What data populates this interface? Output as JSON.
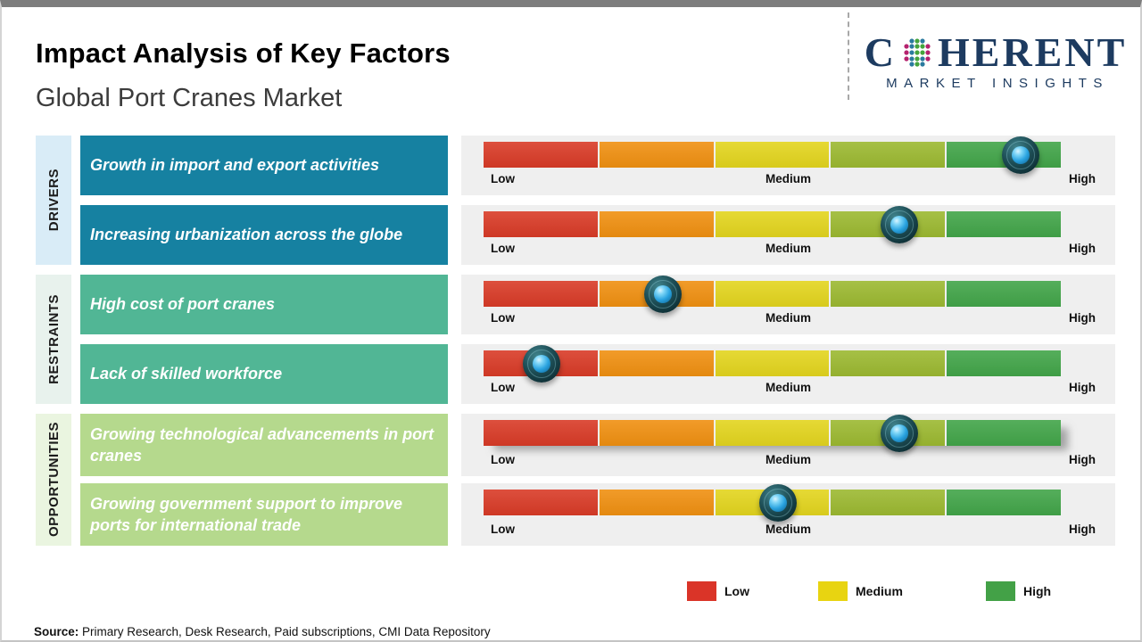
{
  "header": {
    "title": "Impact Analysis of Key Factors",
    "subtitle": "Global Port Cranes Market"
  },
  "logo": {
    "brand_first_letter": "C",
    "brand_rest": "HERENT",
    "tagline": "MARKET INSIGHTS",
    "brand_color": "#1d3b60"
  },
  "chart_data": {
    "type": "impact-scale-bar",
    "scale": {
      "labels": [
        "Low",
        "Medium",
        "High"
      ],
      "segment_colors": [
        "#d93b27",
        "#f09011",
        "#e3d51e",
        "#9cb931",
        "#42a549"
      ],
      "range_pct": [
        0,
        100
      ]
    },
    "categories": [
      {
        "label": "DRIVERS",
        "strip_color": "#d9ecf7",
        "box_color": "#1681a1"
      },
      {
        "label": "RESTRAINTS",
        "strip_color": "#e8f2ed",
        "box_color": "#51b695"
      },
      {
        "label": "OPPORTUNITIES",
        "strip_color": "#eaf5e0",
        "box_color": "#b5d98d"
      }
    ],
    "factors": [
      {
        "category": "DRIVERS",
        "text": "Growth in import and export activities",
        "impact_pct": 93,
        "impact_level": "High"
      },
      {
        "category": "DRIVERS",
        "text": "Increasing urbanization across the globe",
        "impact_pct": 72,
        "impact_level": "Medium-High"
      },
      {
        "category": "RESTRAINTS",
        "text": "High cost of port cranes",
        "impact_pct": 31,
        "impact_level": "Low-Medium"
      },
      {
        "category": "RESTRAINTS",
        "text": "Lack of skilled workforce",
        "impact_pct": 10,
        "impact_level": "Low"
      },
      {
        "category": "OPPORTUNITIES",
        "text": "Growing technological advancements in port cranes",
        "impact_pct": 72,
        "impact_level": "Medium-High"
      },
      {
        "category": "OPPORTUNITIES",
        "text": "Growing government support to improve ports for international trade",
        "impact_pct": 51,
        "impact_level": "Medium"
      }
    ]
  },
  "legend": {
    "items": [
      {
        "label": "Low",
        "color": "#da3428"
      },
      {
        "label": "Medium",
        "color": "#e8d411"
      },
      {
        "label": "High",
        "color": "#43a147"
      }
    ]
  },
  "source": {
    "label": "Source:",
    "text": " Primary Research, Desk Research, Paid subscriptions, CMI Data Repository"
  }
}
